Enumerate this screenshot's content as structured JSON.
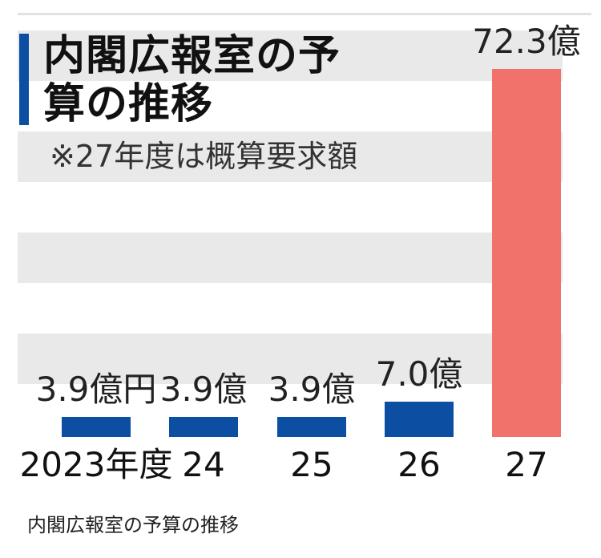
{
  "chart_data": {
    "type": "bar",
    "title": "内閣広報室の予算の推移",
    "note": "※27年度は概算要求額",
    "categories": [
      "2023年度",
      "24",
      "25",
      "26",
      "27"
    ],
    "values": [
      3.9,
      3.9,
      3.9,
      7.0,
      72.3
    ],
    "value_labels": [
      "3.9億円",
      "3.9億",
      "3.9億",
      "7.0億",
      "72.3億"
    ],
    "ylim": [
      0,
      72.3
    ],
    "grid": false,
    "colors": {
      "actual": "#0b4ea2",
      "requested": "#f1716b",
      "title_accent": "#0b4ea2",
      "stripe": "#e9e9e9"
    },
    "bar_colors": [
      "#0b4ea2",
      "#0b4ea2",
      "#0b4ea2",
      "#0b4ea2",
      "#f1716b"
    ]
  },
  "caption": "内閣広報室の予算の推移"
}
